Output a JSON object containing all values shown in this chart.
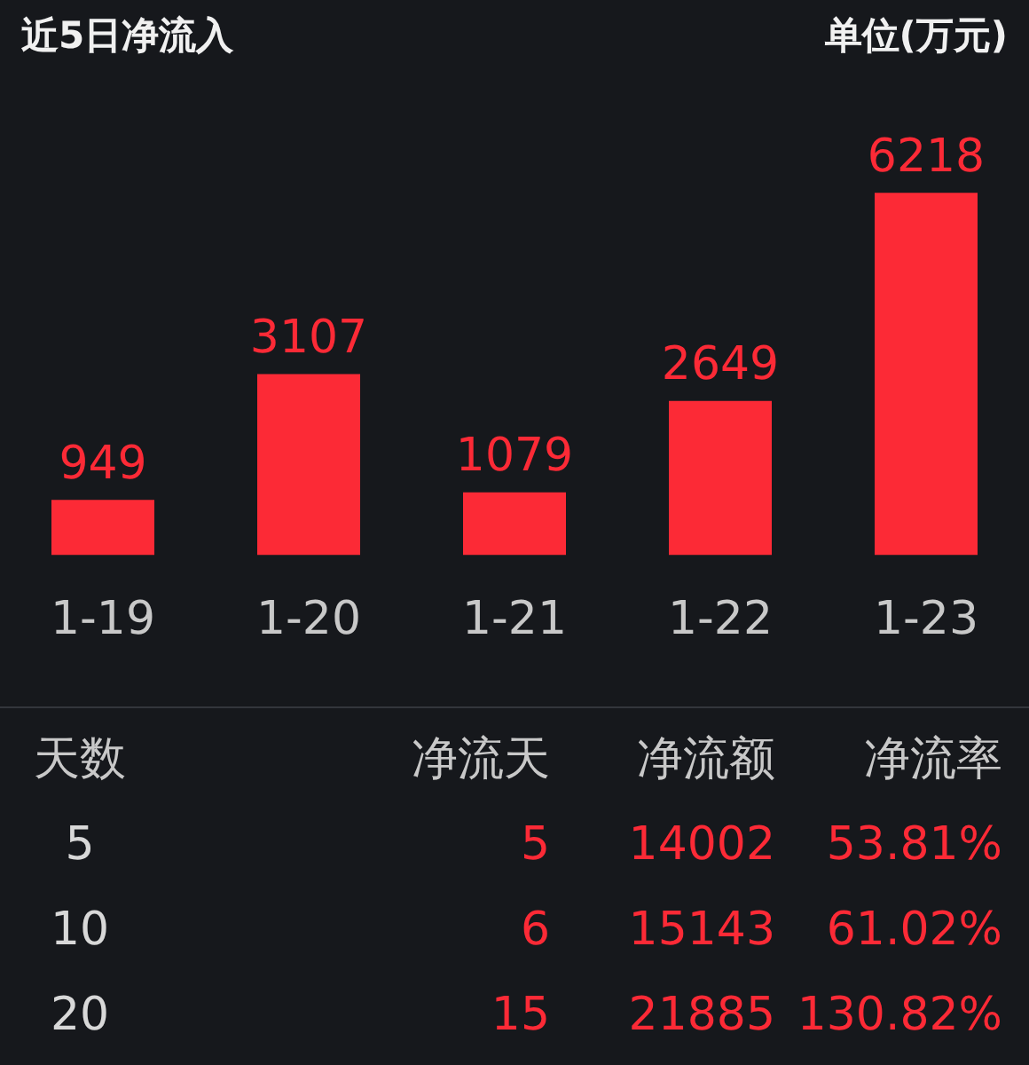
{
  "chart_data": [
    {
      "type": "bar",
      "title": "近5日净流入",
      "subtitle": "单位(万元)",
      "categories": [
        "1-19",
        "1-20",
        "1-21",
        "1-22",
        "1-23"
      ],
      "values": [
        949,
        3107,
        1079,
        2649,
        6218
      ],
      "color": "#fc2a36",
      "data_labels": true
    },
    {
      "type": "other",
      "annotations": [
        "天数",
        "净流天",
        "净流额",
        "净流率",
        "5",
        "5",
        "14002",
        "53.81%",
        "10",
        "6",
        "15143",
        "61.02%",
        "20",
        "15",
        "21885",
        "130.82%"
      ]
    }
  ]
}
